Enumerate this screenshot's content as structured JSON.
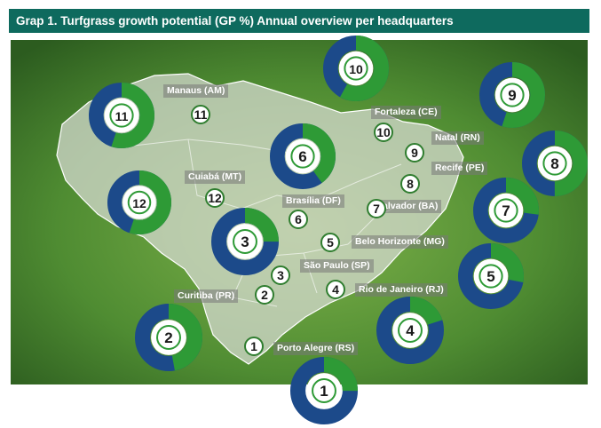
{
  "title": "Grap 1.  Turfgrass growth potential  (GP %) Annual overview per headquarters",
  "colors": {
    "header": "#0e6a5e",
    "green": "#2e9a36",
    "blue": "#1c4a8a"
  },
  "cities": [
    {
      "id": "1",
      "name": "Porto Alegre (RS)"
    },
    {
      "id": "2",
      "name": "Curitiba (PR)"
    },
    {
      "id": "3",
      "name": "São Paulo (SP)"
    },
    {
      "id": "4",
      "name": "Rio de Janeiro (RJ)"
    },
    {
      "id": "5",
      "name": "Belo Horizonte (MG)"
    },
    {
      "id": "6",
      "name": "Brasília (DF)"
    },
    {
      "id": "7",
      "name": "Salvador (BA)"
    },
    {
      "id": "8",
      "name": "Recife (PE)"
    },
    {
      "id": "9",
      "name": "Natal (RN)"
    },
    {
      "id": "10",
      "name": "Fortaleza (CE)"
    },
    {
      "id": "11",
      "name": "Manaus (AM)"
    },
    {
      "id": "12",
      "name": "Cuiabá (MT)"
    }
  ],
  "chart_data": {
    "type": "pie",
    "series": [
      {
        "label": "1",
        "green": 0.25,
        "blue": 0.75
      },
      {
        "label": "2",
        "green": 0.47,
        "blue": 0.53
      },
      {
        "label": "3",
        "green": 0.25,
        "blue": 0.75
      },
      {
        "label": "4",
        "green": 0.2,
        "blue": 0.8
      },
      {
        "label": "5",
        "green": 0.28,
        "blue": 0.72
      },
      {
        "label": "6",
        "green": 0.4,
        "blue": 0.6
      },
      {
        "label": "7",
        "green": 0.27,
        "blue": 0.73
      },
      {
        "label": "8",
        "green": 0.5,
        "blue": 0.5
      },
      {
        "label": "9",
        "green": 0.55,
        "blue": 0.45
      },
      {
        "label": "10",
        "green": 0.58,
        "blue": 0.42
      },
      {
        "label": "11",
        "green": 0.55,
        "blue": 0.45
      },
      {
        "label": "12",
        "green": 0.55,
        "blue": 0.45
      }
    ]
  }
}
